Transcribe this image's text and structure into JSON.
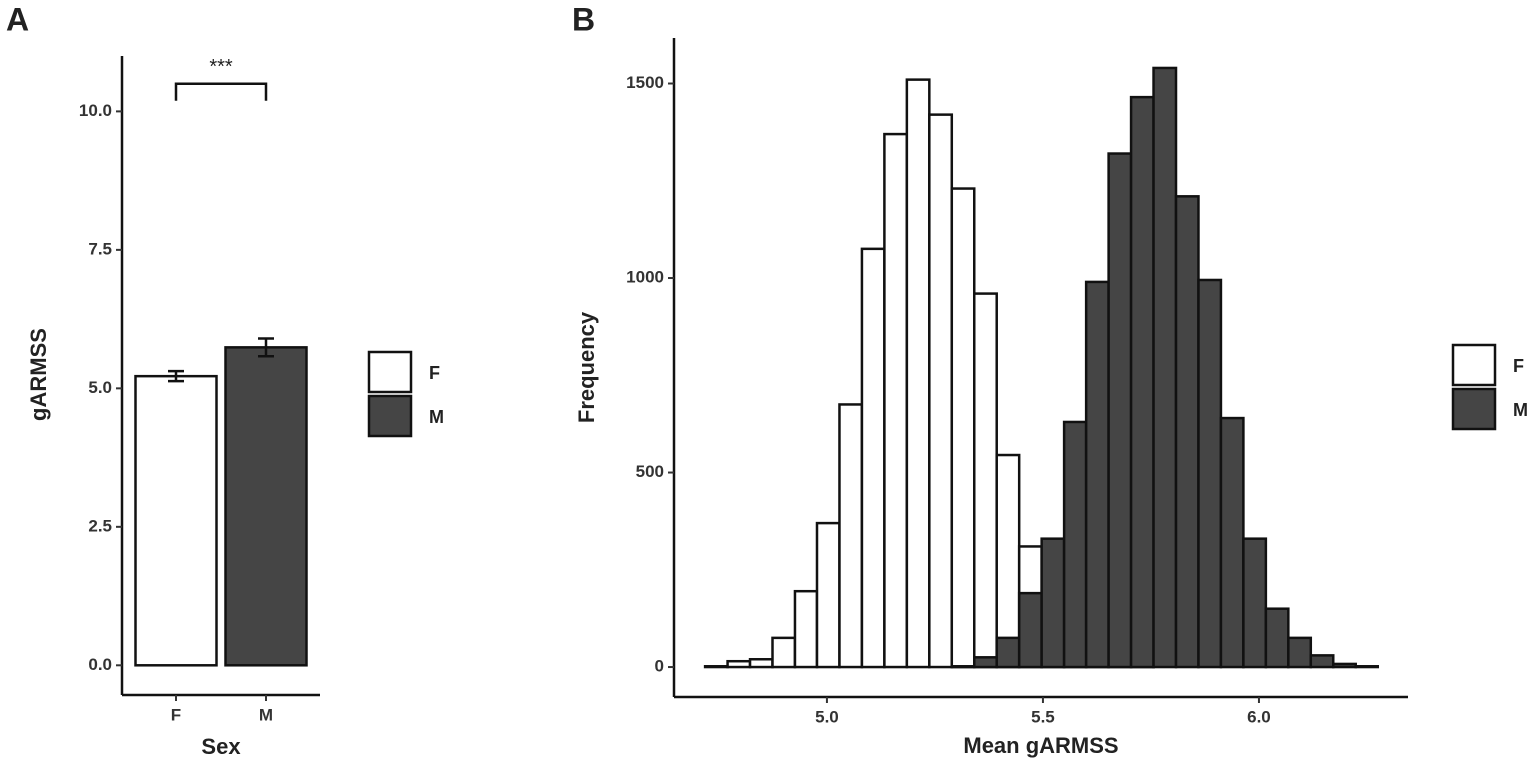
{
  "chart_data": [
    {
      "type": "bar",
      "label": "A",
      "x_label": "Sex",
      "y_label": "gARMSS",
      "categories": [
        "F",
        "M"
      ],
      "values": [
        5.22,
        5.74
      ],
      "errors": [
        0.09,
        0.16
      ],
      "colors": [
        "#ffffff",
        "#454545"
      ],
      "ylim": [
        -0.5,
        11
      ],
      "yticks": [
        {
          "value": 0,
          "label": "0.0"
        },
        2.5,
        {
          "value": 5,
          "label": "5.0"
        },
        7.5,
        {
          "value": 10,
          "label": "10.0"
        }
      ],
      "annotation": {
        "text": "***",
        "y": 10.5
      },
      "legend": "right"
    },
    {
      "type": "histogram",
      "label": "B",
      "x_label": "Mean gARMSS",
      "y_label": "Frequency",
      "bins": [
        4.718,
        4.77,
        4.822,
        4.874,
        4.926,
        4.977,
        5.029,
        5.081,
        5.133,
        5.185,
        5.237,
        5.289,
        5.341,
        5.393,
        5.445,
        5.497,
        5.549,
        5.6,
        5.652,
        5.704,
        5.756,
        5.808,
        5.86,
        5.912,
        5.964,
        6.016,
        6.068,
        6.12,
        6.172,
        6.224,
        6.275
      ],
      "series": [
        {
          "name": "F",
          "color": "#ffffff",
          "values": [
            2,
            15,
            20,
            75,
            195,
            370,
            675,
            1075,
            1370,
            1510,
            1420,
            1230,
            960,
            545,
            310,
            135,
            60,
            15,
            5,
            2,
            0,
            0,
            0,
            0,
            0,
            0,
            0,
            0,
            0,
            0
          ]
        },
        {
          "name": "M",
          "color": "#454545",
          "values": [
            0,
            0,
            0,
            0,
            0,
            0,
            0,
            0,
            0,
            0,
            0,
            2,
            25,
            75,
            190,
            330,
            630,
            990,
            1320,
            1465,
            1540,
            1210,
            995,
            640,
            330,
            150,
            75,
            30,
            8,
            2
          ]
        }
      ],
      "xlim": [
        4.646,
        6.345
      ],
      "ylim": [
        -77,
        1617
      ],
      "xticks": [
        {
          "value": 5,
          "label": "5.0"
        },
        5.5,
        {
          "value": 6,
          "label": "6.0"
        }
      ],
      "yticks": [
        0,
        500,
        1000,
        1500
      ],
      "legend": "right"
    }
  ]
}
